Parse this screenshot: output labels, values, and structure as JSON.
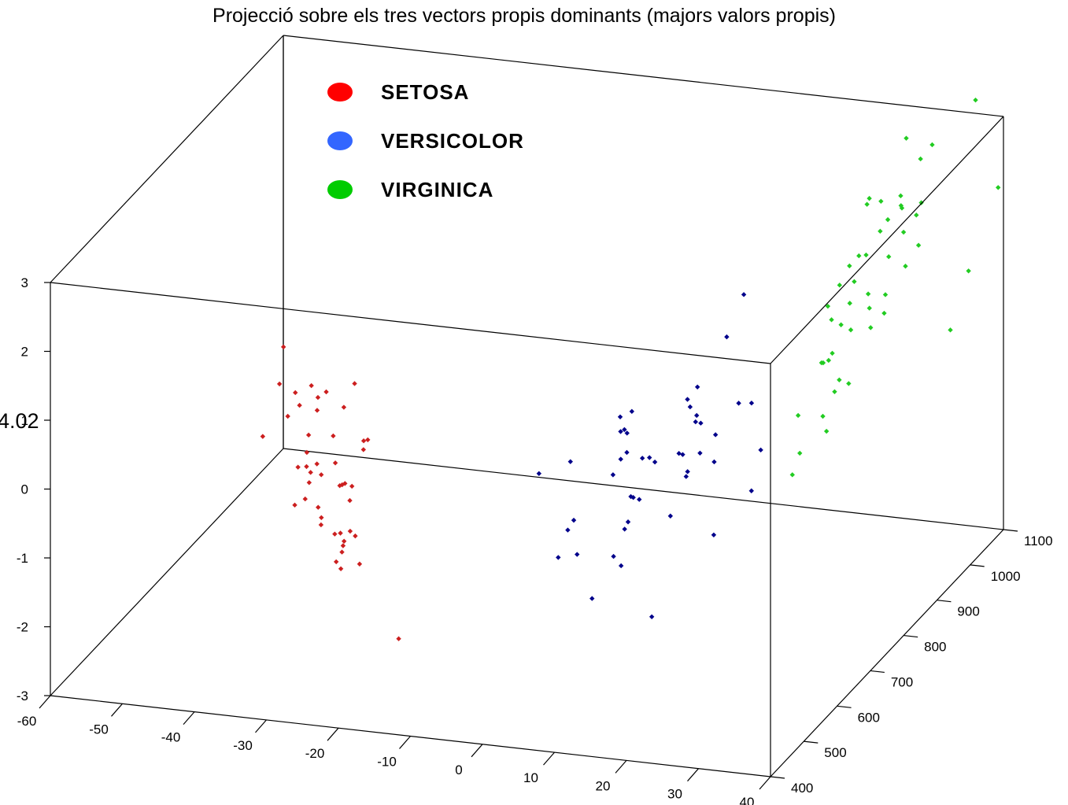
{
  "chart_data": {
    "type": "scatter",
    "title": "Projecció sobre els tres vectors propis dominants (majors valors propis)",
    "xlabel": "",
    "ylabel": "",
    "zlabel": "",
    "xlim": [
      -60,
      40
    ],
    "ylim": [
      400,
      1100
    ],
    "zlim": [
      -3,
      3
    ],
    "x_ticks": [
      "-60",
      "-50",
      "-40",
      "-30",
      "-20",
      "-10",
      "0",
      "10",
      "20",
      "30",
      "40"
    ],
    "y_ticks": [
      "400",
      "500",
      "600",
      "700",
      "800",
      "900",
      "1000",
      "1100"
    ],
    "z_ticks": [
      "-3",
      "-2",
      "-1",
      "0",
      "1",
      "2",
      "3"
    ],
    "box": true,
    "grid": false,
    "legend_position": "top-left",
    "stray_text": "4.02",
    "series": [
      {
        "name": "SETOSA",
        "color": "#cc1f1f",
        "legend_color": "#ff0000",
        "points": [
          [
            -28.0,
            408,
            2.4
          ],
          [
            -28.6,
            409,
            1.85
          ],
          [
            -26.4,
            409,
            1.75
          ],
          [
            -26.0,
            413,
            1.55
          ],
          [
            -27.4,
            408,
            1.4
          ],
          [
            -18.4,
            414,
            1.95
          ],
          [
            -19.8,
            412,
            1.6
          ],
          [
            -30.6,
            402,
            1.1
          ],
          [
            -22.2,
            411,
            1.8
          ],
          [
            -24.4,
            414,
            1.85
          ],
          [
            -23.4,
            412,
            1.7
          ],
          [
            -23.6,
            414,
            1.5
          ],
          [
            -24.6,
            410,
            1.15
          ],
          [
            -24.8,
            409,
            0.9
          ],
          [
            -24.8,
            408,
            0.7
          ],
          [
            -23.4,
            409,
            0.75
          ],
          [
            -22.8,
            409,
            0.6
          ],
          [
            -21.0,
            406,
            1.2
          ],
          [
            -20.8,
            408,
            0.8
          ],
          [
            -17.0,
            411,
            1.15
          ],
          [
            -16.8,
            406,
            1.05
          ],
          [
            -16.2,
            406,
            1.2
          ],
          [
            -20.0,
            404,
            0.5
          ],
          [
            -19.8,
            407,
            0.5
          ],
          [
            -19.6,
            411,
            0.5
          ],
          [
            -18.4,
            406,
            0.5
          ],
          [
            -18.6,
            404,
            0.3
          ],
          [
            -25.8,
            404,
            0.7
          ],
          [
            -24.0,
            403,
            0.65
          ],
          [
            -24.2,
            403,
            0.5
          ],
          [
            -24.8,
            404,
            0.25
          ],
          [
            -26.2,
            403,
            0.15
          ],
          [
            -23.0,
            404,
            0.15
          ],
          [
            -22.6,
            405,
            0.0
          ],
          [
            -22.6,
            404,
            -0.1
          ],
          [
            -20.6,
            402,
            -0.2
          ],
          [
            -20.0,
            406,
            -0.2
          ],
          [
            -19.4,
            404,
            -0.3
          ],
          [
            -19.4,
            401,
            -0.35
          ],
          [
            -19.6,
            402,
            -0.45
          ],
          [
            -20.4,
            402,
            -0.6
          ],
          [
            -19.8,
            403,
            -0.7
          ],
          [
            -18.6,
            405,
            -0.15
          ],
          [
            -17.8,
            403,
            -0.2
          ],
          [
            -17.2,
            403,
            -0.6
          ],
          [
            -12.0,
            408,
            -1.65
          ]
        ]
      },
      {
        "name": "VERSICOLOR",
        "color": "#00008b",
        "legend_color": "#3366ff",
        "points": [
          [
            23.2,
            632,
            2.0
          ],
          [
            24.0,
            666,
            2.45
          ],
          [
            22.6,
            557,
            1.65
          ],
          [
            22.0,
            540,
            1.55
          ],
          [
            22.0,
            548,
            1.4
          ],
          [
            18.0,
            445,
            1.5
          ],
          [
            16.6,
            456,
            1.45
          ],
          [
            14.0,
            511,
            1.35
          ],
          [
            14.0,
            546,
            1.25
          ],
          [
            10.6,
            435,
            1.05
          ],
          [
            14.4,
            515,
            1.15
          ],
          [
            17.0,
            466,
            1.1
          ],
          [
            21.8,
            572,
            1.15
          ],
          [
            21.6,
            573,
            1.05
          ],
          [
            24.4,
            642,
            1.0
          ],
          [
            26.0,
            646,
            1.0
          ],
          [
            22.0,
            580,
            1.0
          ],
          [
            24.0,
            581,
            0.85
          ],
          [
            18.0,
            491,
            0.9
          ],
          [
            15.0,
            491,
            0.85
          ],
          [
            17.6,
            521,
            0.75
          ],
          [
            18.4,
            520,
            0.7
          ],
          [
            20.4,
            549,
            0.7
          ],
          [
            20.6,
            556,
            0.65
          ],
          [
            23.0,
            556,
            0.7
          ],
          [
            24.6,
            564,
            0.55
          ],
          [
            22.0,
            536,
            0.45
          ],
          [
            21.6,
            549,
            0.45
          ],
          [
            27.0,
            652,
            0.3
          ],
          [
            15.8,
            504,
            0.25
          ],
          [
            15.4,
            520,
            0.15
          ],
          [
            11.8,
            537,
            0.35
          ],
          [
            4.8,
            466,
            0.65
          ],
          [
            9.4,
            471,
            0.0
          ],
          [
            17.2,
            499,
            0.25
          ],
          [
            9.4,
            453,
            -0.05
          ],
          [
            15.6,
            500,
            -0.1
          ],
          [
            14.8,
            507,
            -0.25
          ],
          [
            19.4,
            545,
            -0.2
          ],
          [
            27.0,
            624,
            -0.15
          ],
          [
            9.0,
            433,
            -0.35
          ],
          [
            10.6,
            455,
            -0.4
          ],
          [
            14.6,
            478,
            -0.5
          ],
          [
            13.8,
            518,
            -0.85
          ],
          [
            12.4,
            461,
            -1.05
          ],
          [
            22.6,
            606,
            -0.75
          ],
          [
            18.8,
            502,
            -1.45
          ]
        ]
      },
      {
        "name": "VIRGINICA",
        "color": "#22cc22",
        "legend_color": "#00cc00",
        "points": [
          [
            36.6,
            1014,
            0.3
          ],
          [
            37.6,
            1047,
            1.0
          ],
          [
            40.0,
            1084,
            2.05
          ],
          [
            31.6,
            937,
            1.7
          ],
          [
            34.4,
            966,
            1.75
          ],
          [
            30.6,
            869,
            2.05
          ],
          [
            29.8,
            858,
            1.95
          ],
          [
            28.8,
            850,
            1.7
          ],
          [
            34.6,
            970,
            2.35
          ],
          [
            29.6,
            922,
            2.6
          ],
          [
            31.4,
            918,
            2.6
          ],
          [
            33.8,
            985,
            2.9
          ],
          [
            32.0,
            981,
            3.2
          ],
          [
            34.4,
            1007,
            3.0
          ],
          [
            37.0,
            1081,
            3.3
          ],
          [
            28.6,
            819,
            1.55
          ],
          [
            31.0,
            882,
            2.0
          ],
          [
            32.4,
            894,
            2.3
          ],
          [
            29.6,
            915,
            2.55
          ],
          [
            32.4,
            917,
            2.35
          ],
          [
            33.2,
            942,
            2.4
          ],
          [
            32.8,
            948,
            2.4
          ],
          [
            31.6,
            973,
            2.4
          ],
          [
            33.4,
            981,
            2.1
          ],
          [
            32.6,
            960,
            1.95
          ],
          [
            33.6,
            944,
            1.55
          ],
          [
            29.4,
            881,
            1.6
          ],
          [
            27.4,
            856,
            1.15
          ],
          [
            31.0,
            833,
            1.55
          ],
          [
            31.8,
            871,
            1.5
          ],
          [
            31.6,
            879,
            1.25
          ],
          [
            29.8,
            862,
            1.0
          ],
          [
            29.2,
            787,
            0.9
          ],
          [
            29.4,
            804,
            0.85
          ],
          [
            28.6,
            805,
            0.8
          ],
          [
            30.6,
            810,
            0.55
          ],
          [
            27.2,
            760,
            0.25
          ],
          [
            30.4,
            765,
            0.25
          ],
          [
            31.0,
            763,
            0.05
          ],
          [
            27.8,
            752,
            -0.25
          ],
          [
            28.2,
            841,
            0.75
          ],
          [
            29.6,
            837,
            1.2
          ],
          [
            28.2,
            721,
            -0.4
          ],
          [
            30.6,
            796,
            0.45
          ],
          [
            31.4,
            821,
            0.45
          ],
          [
            31.6,
            927,
            1.2
          ],
          [
            30.8,
            900,
            0.85
          ],
          [
            31.2,
            932,
            0.9
          ]
        ]
      }
    ]
  }
}
